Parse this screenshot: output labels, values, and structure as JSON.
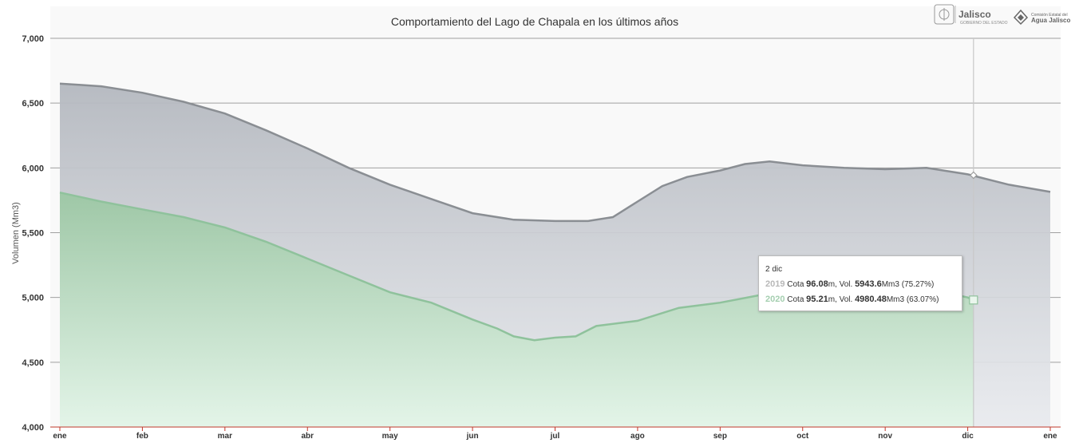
{
  "chart_data": {
    "type": "area",
    "title": "Comportamiento del Lago de Chapala en los últimos años",
    "ylabel": "Volumen (Mm3)",
    "ylim": [
      4000,
      7000
    ],
    "yticks": [
      "4,000",
      "4,500",
      "5,000",
      "5,500",
      "6,000",
      "6,500",
      "7,000"
    ],
    "categories": [
      "ene",
      "feb",
      "mar",
      "abr",
      "may",
      "jun",
      "jul",
      "ago",
      "sep",
      "oct",
      "nov",
      "dic",
      "ene"
    ],
    "grid": true,
    "series": [
      {
        "name": "2019",
        "color": "#8a8e93",
        "x": [
          0,
          0.25,
          0.5,
          1.0,
          1.5,
          2.0,
          2.5,
          3.0,
          3.5,
          4.0,
          4.5,
          5.0,
          5.5,
          6.0,
          6.4,
          6.7,
          7.0,
          7.3,
          7.6,
          8.0,
          8.3,
          8.6,
          9.0,
          9.5,
          10.0,
          10.5,
          11.0,
          11.5,
          12.0
        ],
        "values": [
          6650,
          6640,
          6630,
          6580,
          6510,
          6420,
          6290,
          6150,
          6000,
          5870,
          5760,
          5650,
          5600,
          5590,
          5590,
          5620,
          5740,
          5860,
          5930,
          5980,
          6030,
          6050,
          6020,
          6000,
          5990,
          6000,
          5950,
          5870,
          5815
        ]
      },
      {
        "name": "2020",
        "color": "#8fc29c",
        "x": [
          0,
          0.5,
          1.0,
          1.5,
          2.0,
          2.5,
          3.0,
          3.5,
          4.0,
          4.5,
          5.0,
          5.3,
          5.5,
          5.75,
          6.0,
          6.25,
          6.5,
          7.0,
          7.5,
          8.0,
          8.5,
          9.0,
          9.5,
          10.0,
          10.5,
          11.0,
          11.07
        ],
        "values": [
          5810,
          5740,
          5680,
          5620,
          5540,
          5430,
          5300,
          5170,
          5040,
          4960,
          4830,
          4760,
          4700,
          4670,
          4690,
          4700,
          4780,
          4820,
          4920,
          4960,
          5020,
          5110,
          5150,
          5190,
          5070,
          5000,
          4980
        ]
      }
    ],
    "hover": {
      "x": 11.07,
      "values": [
        5943.6,
        4980.48
      ]
    }
  },
  "tooltip": {
    "date": "2 dic",
    "rows": [
      {
        "year": "2019",
        "cota_label": "Cota",
        "cota": "96.08",
        "unit_m": "m, Vol.",
        "vol": "5943.6",
        "unit_vol": "Mm3",
        "pct": "(75.27%)"
      },
      {
        "year": "2020",
        "cota_label": "Cota",
        "cota": "95.21",
        "unit_m": "m, Vol.",
        "vol": "4980.48",
        "unit_vol": "Mm3",
        "pct": "(63.07%)"
      }
    ]
  },
  "logos": {
    "jalisco": "Jalisco",
    "jalisco_sub": "GOBIERNO DEL ESTADO",
    "cea_top": "Comisión Estatal del",
    "cea_bottom": "Agua Jalisco"
  }
}
